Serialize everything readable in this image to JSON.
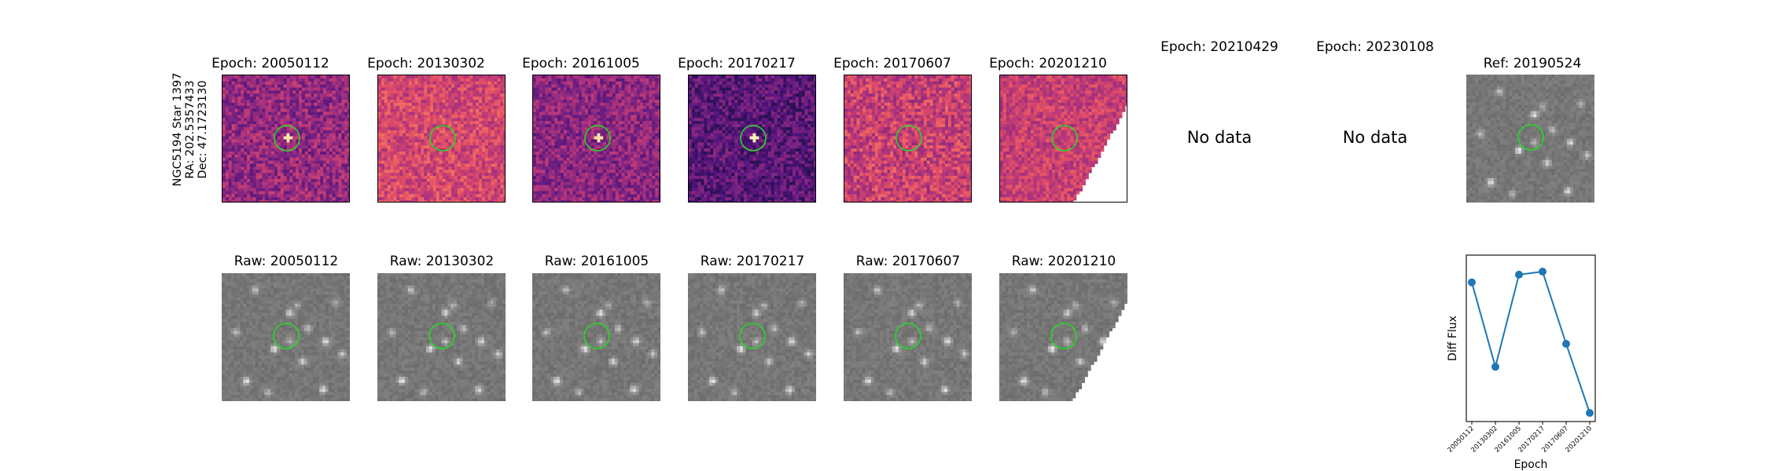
{
  "star_info": {
    "name": "NGC5194 Star 1397",
    "ra": "RA: 202.5357433",
    "dec": "Dec: 47.1723130"
  },
  "diff_row": [
    {
      "title": "Epoch: 20050112",
      "has_data": true
    },
    {
      "title": "Epoch: 20130302",
      "has_data": true
    },
    {
      "title": "Epoch: 20161005",
      "has_data": true
    },
    {
      "title": "Epoch: 20170217",
      "has_data": true
    },
    {
      "title": "Epoch: 20170607",
      "has_data": true
    },
    {
      "title": "Epoch: 20201210",
      "has_data": true
    },
    {
      "title": "Epoch: 20210429",
      "has_data": false,
      "message": "No data"
    },
    {
      "title": "Epoch: 20230108",
      "has_data": false,
      "message": "No data"
    }
  ],
  "ref_panel": {
    "title": "Ref: 20190524"
  },
  "raw_row": [
    {
      "title": "Raw: 20050112"
    },
    {
      "title": "Raw: 20130302"
    },
    {
      "title": "Raw: 20161005"
    },
    {
      "title": "Raw: 20170217"
    },
    {
      "title": "Raw: 20170607"
    },
    {
      "title": "Raw: 20201210"
    }
  ],
  "colors": {
    "circle": "#22dd22",
    "line": "#1f77b4",
    "raw_gray": "#808080"
  },
  "chart_data": {
    "type": "line",
    "x": [
      "20050112",
      "20130302",
      "20161005",
      "20170217",
      "20170607",
      "20201210"
    ],
    "y": [
      0.85,
      0.3,
      0.9,
      0.92,
      0.45,
      0.0
    ],
    "xlabel": "Epoch",
    "ylabel": "Diff Flux",
    "marker": "circle",
    "grid": false
  }
}
